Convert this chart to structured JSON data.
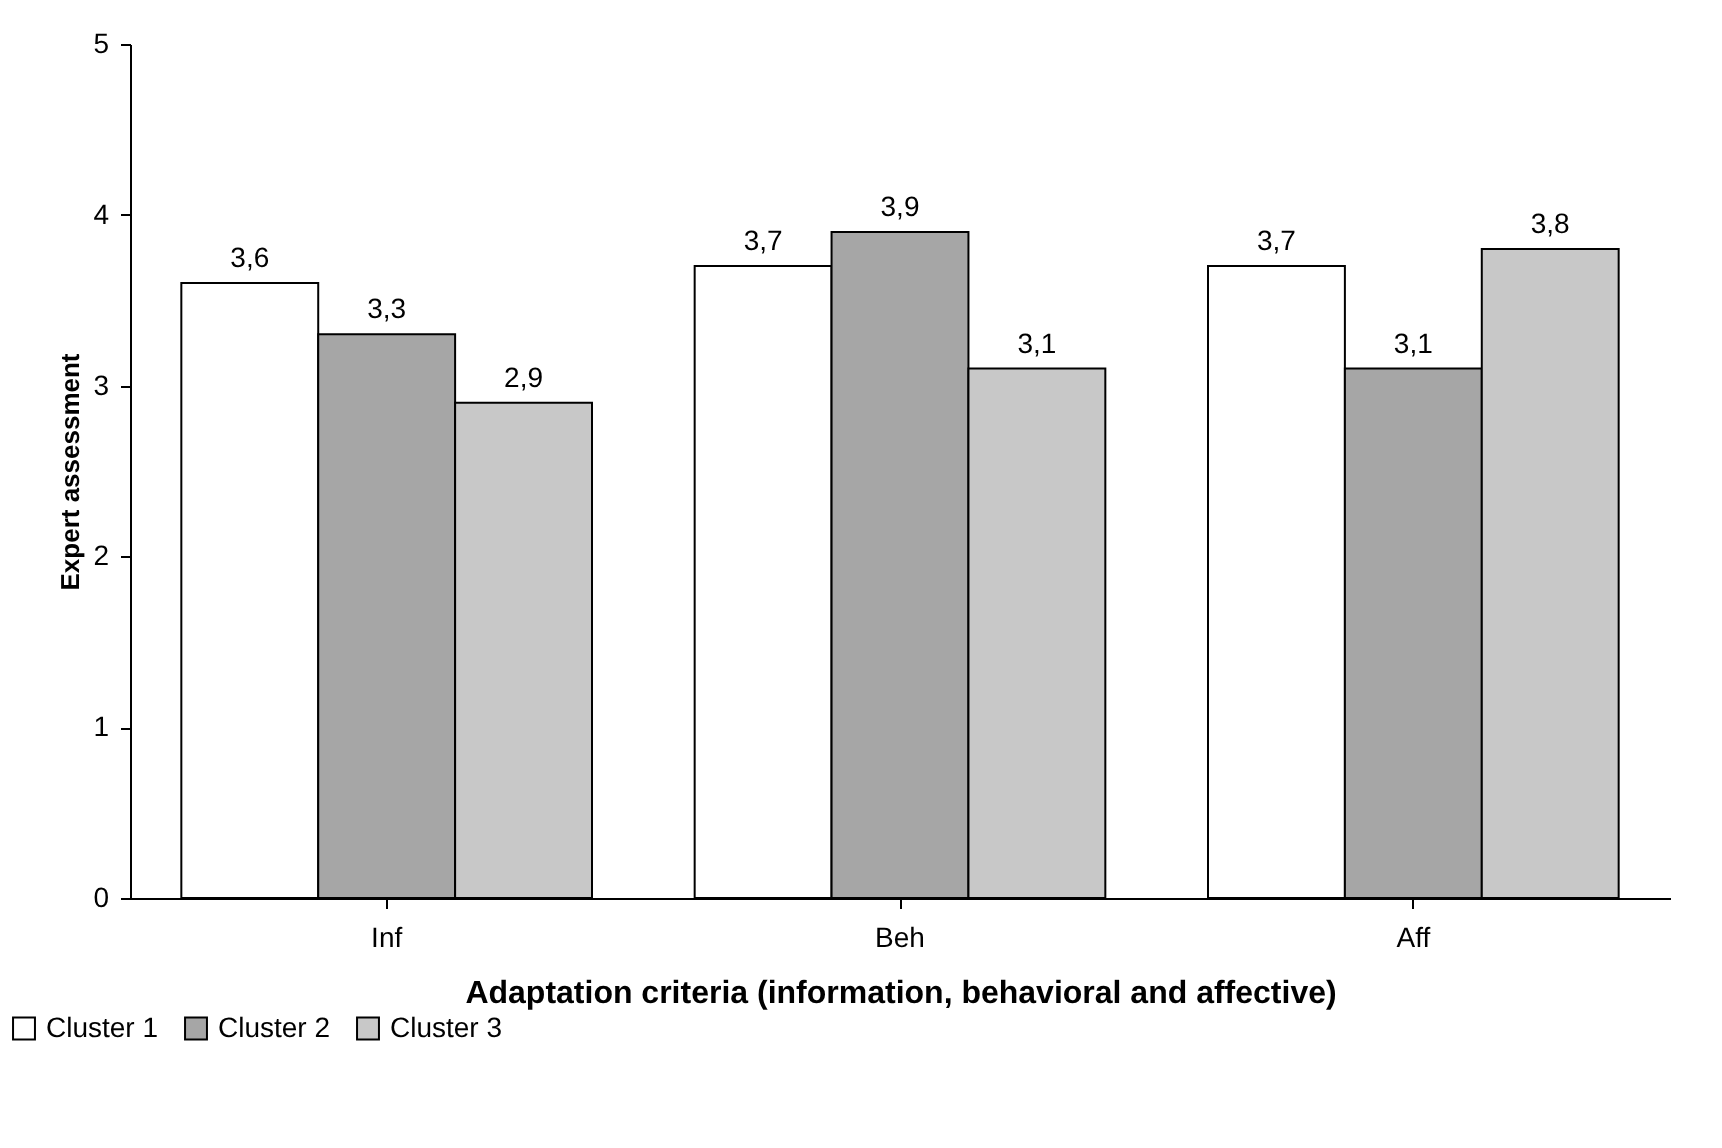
{
  "chart_data": {
    "type": "bar",
    "xlabel": "Adaptation criteria (information, behavioral and affective)",
    "ylabel": "Expert assessment",
    "categories": [
      "Inf",
      "Beh",
      "Aff"
    ],
    "series": [
      {
        "name": "Cluster 1",
        "color": "#ffffff",
        "values": [
          3.6,
          3.7,
          3.7
        ],
        "value_labels": [
          "3,6",
          "3,7",
          "3,7"
        ]
      },
      {
        "name": "Cluster 2",
        "color": "#a6a6a6",
        "values": [
          3.3,
          3.9,
          3.1
        ],
        "value_labels": [
          "3,3",
          "3,9",
          "3,1"
        ]
      },
      {
        "name": "Cluster 3",
        "color": "#c8c8c8",
        "values": [
          2.9,
          3.1,
          3.8
        ],
        "value_labels": [
          "2,9",
          "3,1",
          "3,8"
        ]
      }
    ],
    "ylim": [
      0,
      5
    ],
    "yticks": [
      0,
      1,
      2,
      3,
      4,
      5
    ],
    "grid": false,
    "legend": "bottom left"
  }
}
